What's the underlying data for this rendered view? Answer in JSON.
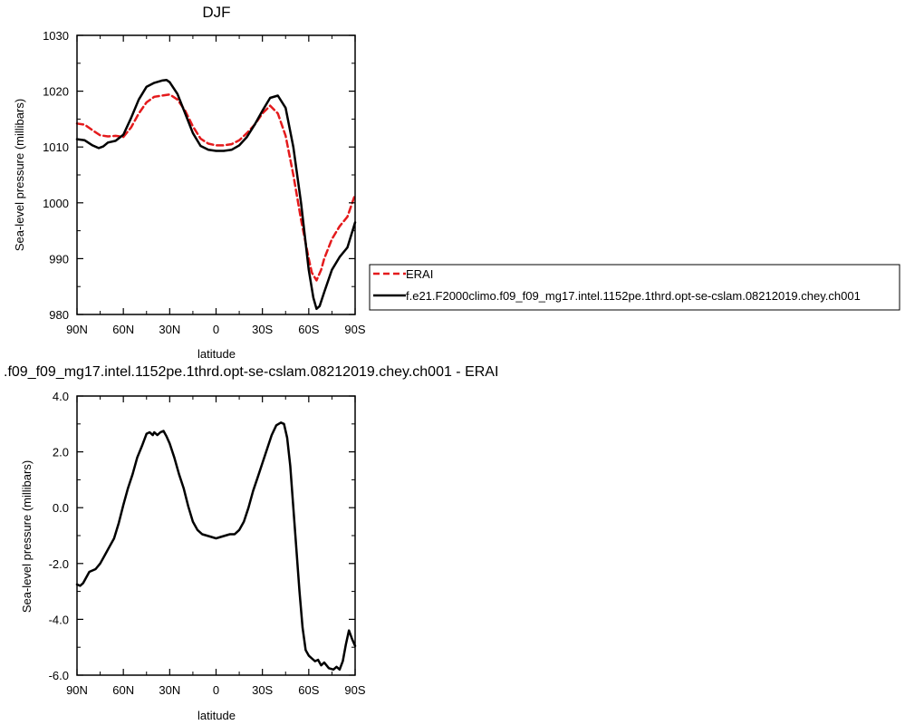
{
  "chart_data": [
    {
      "type": "line",
      "title": "DJF",
      "xlabel": "latitude",
      "ylabel": "Sea-level pressure (millibars)",
      "xlim": [
        90,
        -90
      ],
      "ylim": [
        980,
        1030
      ],
      "x_ticks": [
        90,
        60,
        30,
        0,
        -30,
        -60,
        -90
      ],
      "x_tick_labels": [
        "90N",
        "60N",
        "30N",
        "0",
        "30S",
        "60S",
        "90S"
      ],
      "y_ticks": [
        980,
        990,
        1000,
        1010,
        1020,
        1030
      ],
      "y_tick_labels": [
        "980",
        "990",
        "1000",
        "1010",
        "1020",
        "1030"
      ],
      "legend_position": "right",
      "series": [
        {
          "name": "ERAI",
          "color": "#e41a1c",
          "dash": true,
          "x": [
            90,
            85,
            80,
            75,
            70,
            65,
            60,
            55,
            50,
            45,
            40,
            35,
            30,
            25,
            20,
            15,
            10,
            5,
            0,
            -5,
            -10,
            -15,
            -20,
            -25,
            -30,
            -35,
            -40,
            -45,
            -50,
            -55,
            -60,
            -62,
            -65,
            -68,
            -70,
            -75,
            -80,
            -85,
            -90
          ],
          "y": [
            1014.2,
            1014.0,
            1013.0,
            1012.1,
            1011.9,
            1012.0,
            1011.8,
            1013.5,
            1016.0,
            1018.0,
            1019.0,
            1019.2,
            1019.4,
            1018.5,
            1016.5,
            1013.7,
            1011.5,
            1010.6,
            1010.3,
            1010.3,
            1010.5,
            1011.2,
            1012.5,
            1014.0,
            1016.0,
            1017.4,
            1016.0,
            1012.0,
            1005.0,
            997.0,
            990.0,
            987.5,
            986.1,
            988.0,
            990.0,
            993.5,
            995.8,
            997.5,
            1001.5
          ]
        },
        {
          "name": "f.e21.F2000climo.f09_f09_mg17.intel.1152pe.1thrd.opt-se-cslam.08212019.chey.ch001",
          "color": "#000000",
          "dash": false,
          "x": [
            90,
            85,
            80,
            76,
            73,
            70,
            65,
            60,
            55,
            50,
            45,
            40,
            35,
            32,
            30,
            25,
            20,
            15,
            10,
            5,
            0,
            -5,
            -10,
            -15,
            -20,
            -25,
            -30,
            -35,
            -40,
            -45,
            -50,
            -55,
            -60,
            -63,
            -65,
            -67,
            -70,
            -75,
            -80,
            -85,
            -90
          ],
          "y": [
            1011.4,
            1011.2,
            1010.3,
            1009.8,
            1010.1,
            1010.8,
            1011.1,
            1012.2,
            1015.2,
            1018.5,
            1020.8,
            1021.5,
            1021.9,
            1022.0,
            1021.6,
            1019.5,
            1016.0,
            1012.5,
            1010.2,
            1009.5,
            1009.3,
            1009.3,
            1009.5,
            1010.3,
            1011.8,
            1014.0,
            1016.5,
            1018.8,
            1019.2,
            1017.0,
            1010.0,
            1000.0,
            988.0,
            983.0,
            981.0,
            981.5,
            984.0,
            988.0,
            990.3,
            992.0,
            996.5
          ]
        }
      ]
    },
    {
      "type": "line",
      "title": ".f09_f09_mg17.intel.1152pe.1thrd.opt-se-cslam.08212019.chey.ch001 - ERAI",
      "xlabel": "latitude",
      "ylabel": "Sea-level pressure (millibars)",
      "xlim": [
        90,
        -90
      ],
      "ylim": [
        -6.0,
        4.0
      ],
      "x_ticks": [
        90,
        60,
        30,
        0,
        -30,
        -60,
        -90
      ],
      "x_tick_labels": [
        "90N",
        "60N",
        "30N",
        "0",
        "30S",
        "60S",
        "90S"
      ],
      "y_ticks": [
        -6.0,
        -4.0,
        -2.0,
        0.0,
        2.0,
        4.0
      ],
      "y_tick_labels": [
        "-6.0",
        "-4.0",
        "-2.0",
        "0.0",
        "2.0",
        "4.0"
      ],
      "series": [
        {
          "color": "#000000",
          "dash": false,
          "x": [
            90,
            88,
            86,
            82,
            78,
            75,
            72,
            69,
            66,
            63,
            60,
            57,
            54,
            51,
            48,
            45,
            43,
            41,
            40,
            38,
            36,
            34,
            32,
            30,
            27,
            24,
            21,
            18,
            15,
            12,
            9,
            6,
            3,
            0,
            -3,
            -6,
            -9,
            -12,
            -15,
            -18,
            -21,
            -24,
            -27,
            -30,
            -33,
            -36,
            -39,
            -42,
            -44,
            -46,
            -48,
            -50,
            -52,
            -54,
            -56,
            -58,
            -60,
            -62,
            -64,
            -66,
            -68,
            -70,
            -73,
            -76,
            -78,
            -80,
            -82,
            -84,
            -86,
            -88,
            -90
          ],
          "y": [
            -2.75,
            -2.8,
            -2.7,
            -2.3,
            -2.2,
            -2.0,
            -1.7,
            -1.4,
            -1.1,
            -0.55,
            0.1,
            0.7,
            1.2,
            1.8,
            2.2,
            2.65,
            2.7,
            2.6,
            2.7,
            2.6,
            2.7,
            2.75,
            2.55,
            2.3,
            1.8,
            1.2,
            0.7,
            0.05,
            -0.5,
            -0.8,
            -0.95,
            -1.0,
            -1.05,
            -1.1,
            -1.05,
            -1.0,
            -0.95,
            -0.95,
            -0.8,
            -0.5,
            0.0,
            0.6,
            1.1,
            1.6,
            2.1,
            2.6,
            2.95,
            3.05,
            3.0,
            2.5,
            1.5,
            0.0,
            -1.5,
            -3.0,
            -4.3,
            -5.1,
            -5.3,
            -5.4,
            -5.5,
            -5.45,
            -5.65,
            -5.55,
            -5.75,
            -5.8,
            -5.7,
            -5.8,
            -5.5,
            -4.9,
            -4.4,
            -4.7,
            -4.95
          ]
        }
      ]
    }
  ]
}
